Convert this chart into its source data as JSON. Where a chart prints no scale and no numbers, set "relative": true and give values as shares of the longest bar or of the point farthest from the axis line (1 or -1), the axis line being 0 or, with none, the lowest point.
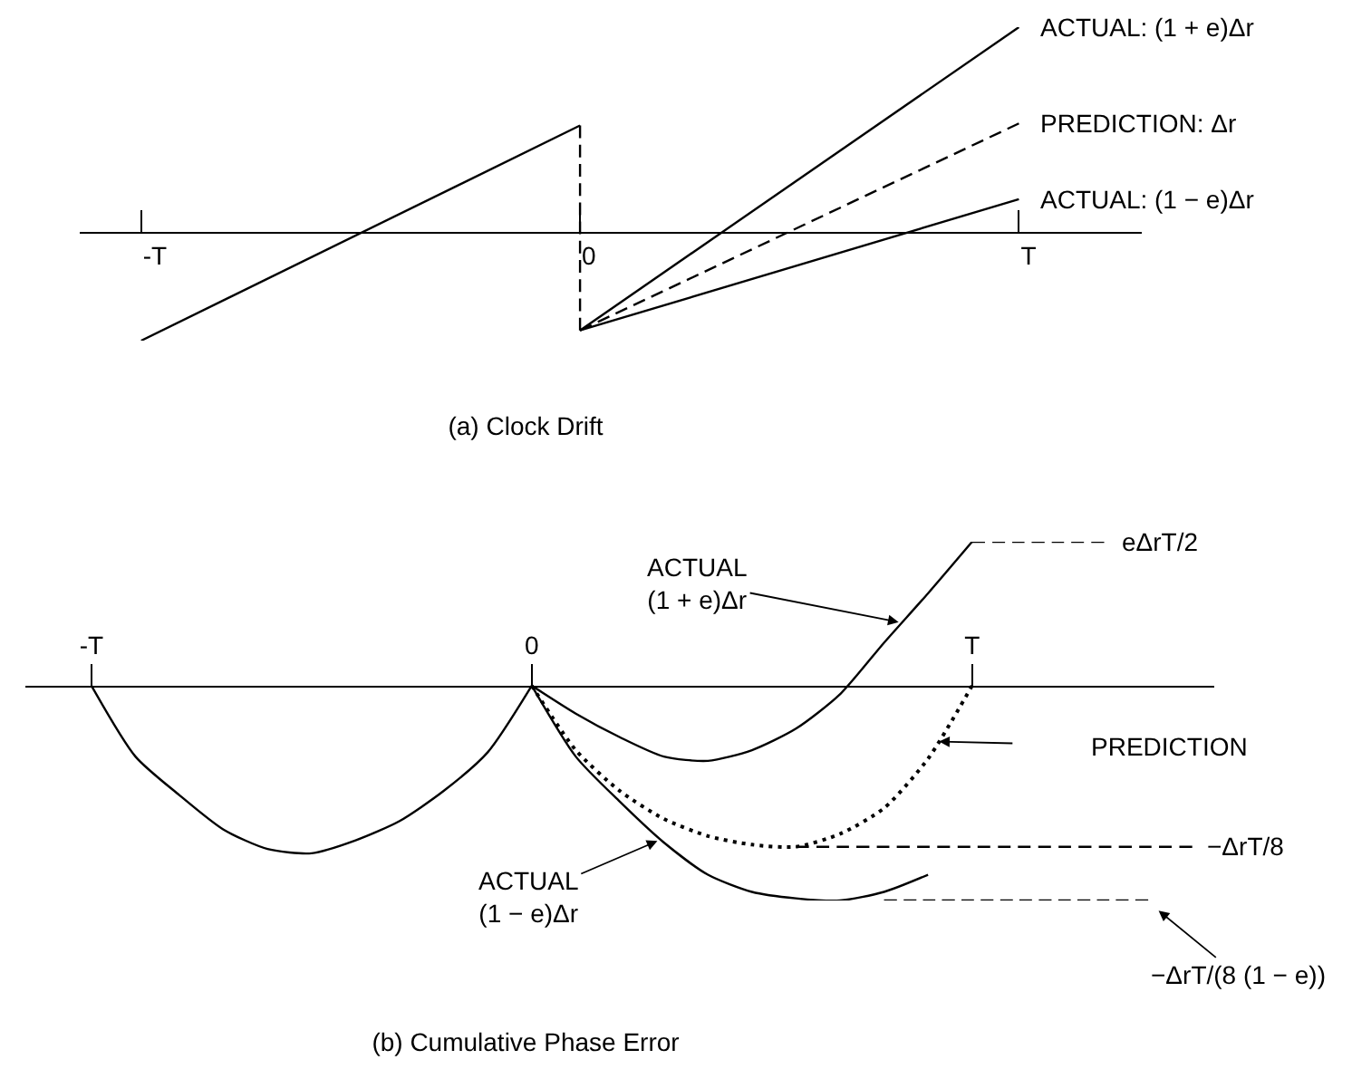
{
  "chart_data": [
    {
      "type": "line",
      "title": "(a) Clock Drift",
      "relative": true,
      "categories": [
        "-T",
        "0",
        "T"
      ],
      "series": [
        {
          "values": [
            -0.53,
            0.52,
            null
          ],
          "color": "#000000"
        },
        {
          "name": "ACTUAL: (1 + e)Δr",
          "values": [
            null,
            -0.48,
            1.0
          ],
          "color": "#000000"
        },
        {
          "name": "PREDICTION: Δr",
          "values": [
            null,
            -0.48,
            0.53
          ],
          "color": "#000000",
          "line_style": "dashed"
        },
        {
          "name": "ACTUAL: (1 − e)Δr",
          "values": [
            null,
            -0.48,
            0.16
          ],
          "color": "#000000"
        },
        {
          "x": [
            "0",
            "0"
          ],
          "values": [
            0.52,
            -0.48
          ],
          "color": "#000000",
          "line_style": "dashed"
        }
      ]
    },
    {
      "type": "line",
      "title": "(b) Cumulative Phase Error",
      "relative": true,
      "categories": [
        null,
        "-T",
        null,
        null,
        null,
        null,
        null,
        null,
        null,
        null,
        null,
        "0",
        null,
        null,
        null,
        null,
        null,
        null,
        null,
        null,
        null,
        "T",
        null,
        null,
        null,
        null,
        null
      ],
      "series": [
        {
          "values": [
            null,
            0,
            -0.33,
            -0.51,
            -0.67,
            -0.76,
            -0.78,
            -0.72,
            -0.63,
            -0.49,
            -0.31,
            0,
            null,
            null,
            null,
            null,
            null,
            null,
            null,
            null,
            null,
            null,
            null,
            null,
            null,
            null,
            null
          ],
          "color": "#000000"
        },
        {
          "values": [
            null,
            null,
            null,
            null,
            null,
            null,
            null,
            null,
            null,
            null,
            null,
            0,
            -0.13,
            -0.24,
            -0.33,
            -0.35,
            -0.3,
            -0.2,
            -0.04,
            0.2,
            0.43,
            0.67,
            null,
            null,
            null,
            null,
            null
          ],
          "color": "#000000"
        },
        {
          "values": [
            null,
            null,
            null,
            null,
            null,
            null,
            null,
            null,
            null,
            null,
            null,
            0,
            -0.3,
            -0.49,
            -0.62,
            -0.7,
            -0.74,
            -0.75,
            -0.69,
            -0.57,
            -0.34,
            0,
            null,
            null,
            null,
            null,
            null
          ],
          "color": "#000000",
          "line_style": "dotted"
        },
        {
          "values": [
            null,
            null,
            null,
            null,
            null,
            null,
            null,
            null,
            null,
            null,
            null,
            0,
            -0.33,
            -0.54,
            -0.73,
            -0.88,
            -0.96,
            -0.99,
            -1.0,
            -0.96,
            -0.88,
            null,
            null,
            null,
            null,
            null,
            null
          ],
          "color": "#000000"
        },
        {
          "values": [
            null,
            null,
            null,
            null,
            null,
            null,
            null,
            null,
            null,
            null,
            null,
            null,
            null,
            null,
            null,
            null,
            null,
            null,
            null,
            null,
            null,
            0.67,
            0.67,
            0.67,
            0.67,
            null,
            null
          ],
          "color": "#000000",
          "line_style": "dashed"
        },
        {
          "values": [
            null,
            null,
            null,
            null,
            null,
            null,
            null,
            null,
            null,
            null,
            null,
            null,
            null,
            null,
            null,
            null,
            null,
            -0.75,
            -0.75,
            -0.75,
            -0.75,
            -0.75,
            -0.75,
            -0.75,
            -0.75,
            -0.75,
            -0.75
          ],
          "color": "#000000",
          "line_style": "dashed"
        },
        {
          "values": [
            null,
            null,
            null,
            null,
            null,
            null,
            null,
            null,
            null,
            null,
            null,
            null,
            null,
            null,
            null,
            null,
            null,
            null,
            null,
            -1.0,
            -1.0,
            -1.0,
            -1.0,
            -1.0,
            -1.0,
            -1.0,
            null
          ],
          "color": "#000000",
          "line_style": "dashed"
        }
      ],
      "annotations": [
        "ACTUAL\n(1 + e)Δr",
        "PREDICTION",
        "ACTUAL\n(1 − e)Δr",
        "eΔrT/2",
        "−ΔrT/8",
        "−ΔrT/(8 (1 − e))"
      ]
    }
  ]
}
